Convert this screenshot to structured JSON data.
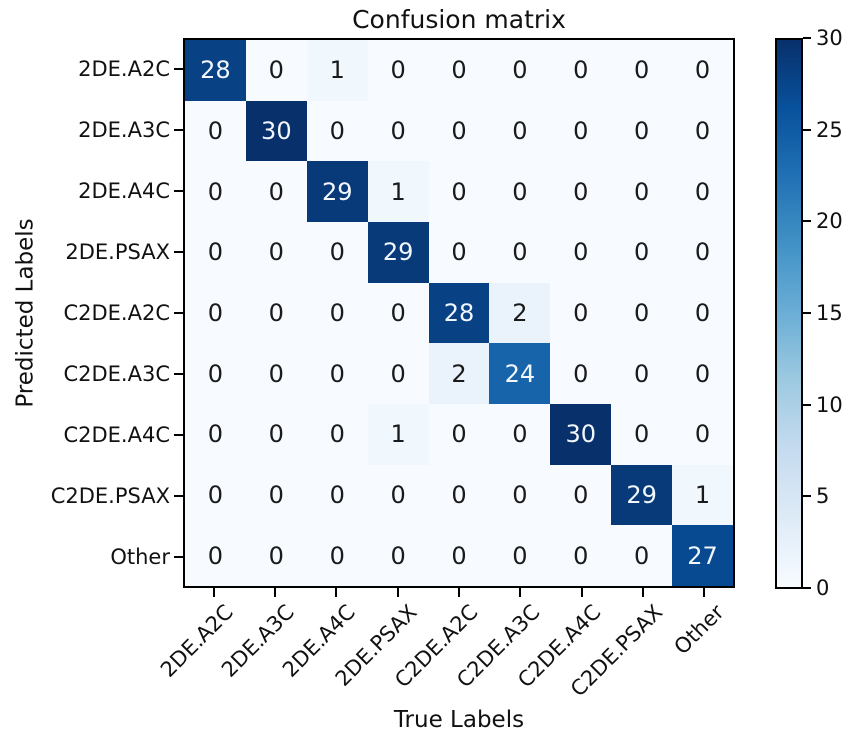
{
  "chart_data": {
    "type": "heatmap",
    "title": "Confusion matrix",
    "xlabel": "True Labels",
    "ylabel": "Predicted Labels",
    "categories": [
      "2DE.A2C",
      "2DE.A3C",
      "2DE.A4C",
      "2DE.PSAX",
      "C2DE.A2C",
      "C2DE.A3C",
      "C2DE.A4C",
      "C2DE.PSAX",
      "Other"
    ],
    "matrix": [
      [
        28,
        0,
        1,
        0,
        0,
        0,
        0,
        0,
        0
      ],
      [
        0,
        30,
        0,
        0,
        0,
        0,
        0,
        0,
        0
      ],
      [
        0,
        0,
        29,
        1,
        0,
        0,
        0,
        0,
        0
      ],
      [
        0,
        0,
        0,
        29,
        0,
        0,
        0,
        0,
        0
      ],
      [
        0,
        0,
        0,
        0,
        28,
        2,
        0,
        0,
        0
      ],
      [
        0,
        0,
        0,
        0,
        2,
        24,
        0,
        0,
        0
      ],
      [
        0,
        0,
        0,
        1,
        0,
        0,
        30,
        0,
        0
      ],
      [
        0,
        0,
        0,
        0,
        0,
        0,
        0,
        29,
        1
      ],
      [
        0,
        0,
        0,
        0,
        0,
        0,
        0,
        0,
        27
      ]
    ],
    "colorbar": {
      "min": 0,
      "max": 30,
      "ticks": [
        0,
        5,
        10,
        15,
        20,
        25,
        30
      ]
    },
    "colormap": {
      "name": "Blues",
      "stops": [
        "#f7fbff",
        "#deebf7",
        "#c6dbef",
        "#9ecae1",
        "#6baed6",
        "#4292c6",
        "#2171b5",
        "#08519c",
        "#08306b"
      ]
    },
    "cell_text": {
      "light": "#f2f7fd",
      "dark": "#1a1a1a"
    },
    "grid_on": false,
    "legend_position": "colorbar-right"
  }
}
